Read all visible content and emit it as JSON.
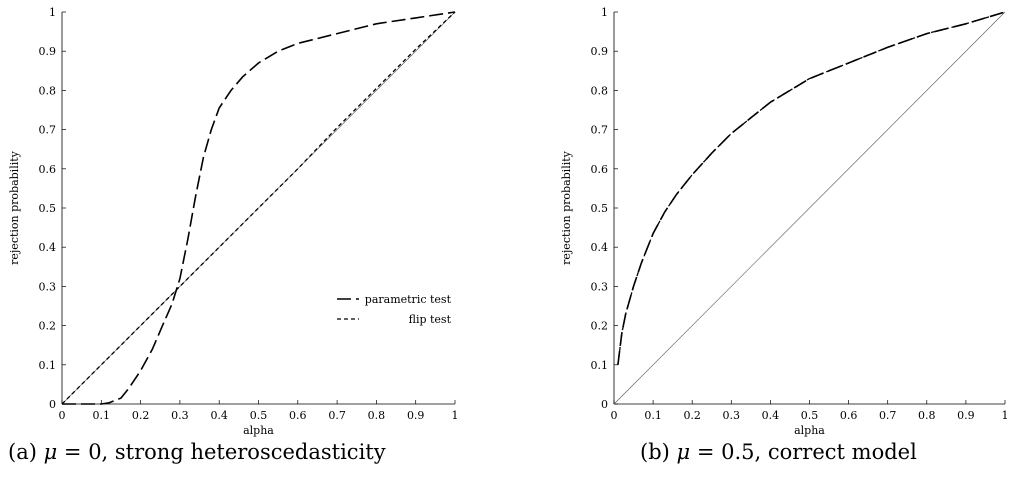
{
  "chart_data": [
    {
      "type": "line",
      "title": "",
      "xlabel": "alpha",
      "ylabel": "rejection probability",
      "xlim": [
        0,
        1
      ],
      "ylim": [
        0,
        1
      ],
      "xticks": [
        "0",
        "0.1",
        "0.2",
        "0.3",
        "0.4",
        "0.5",
        "0.6",
        "0.7",
        "0.8",
        "0.9",
        "1"
      ],
      "yticks": [
        "0",
        "0.1",
        "0.2",
        "0.3",
        "0.4",
        "0.5",
        "0.6",
        "0.7",
        "0.8",
        "0.9",
        "1"
      ],
      "grid": false,
      "legend_position": "lower-right",
      "reference_line": {
        "x": [
          0,
          1
        ],
        "y": [
          0,
          1
        ],
        "style": "thin-solid"
      },
      "series": [
        {
          "name": "parametric test",
          "style": "long-dash",
          "x": [
            0.0,
            0.05,
            0.1,
            0.12,
            0.15,
            0.17,
            0.2,
            0.23,
            0.26,
            0.28,
            0.3,
            0.32,
            0.34,
            0.36,
            0.38,
            0.4,
            0.43,
            0.46,
            0.5,
            0.55,
            0.6,
            0.7,
            0.8,
            0.9,
            1.0
          ],
          "y": [
            0.0,
            0.0,
            0.0,
            0.003,
            0.015,
            0.04,
            0.085,
            0.14,
            0.21,
            0.255,
            0.32,
            0.42,
            0.53,
            0.63,
            0.7,
            0.755,
            0.8,
            0.835,
            0.87,
            0.9,
            0.92,
            0.945,
            0.97,
            0.985,
            1.0
          ]
        },
        {
          "name": "flip test",
          "style": "short-dash",
          "x": [
            0.0,
            0.1,
            0.2,
            0.3,
            0.4,
            0.5,
            0.6,
            0.7,
            0.8,
            0.9,
            1.0
          ],
          "y": [
            0.0,
            0.1,
            0.2,
            0.3,
            0.4,
            0.5,
            0.6,
            0.705,
            0.805,
            0.905,
            1.0
          ]
        }
      ]
    },
    {
      "type": "line",
      "title": "",
      "xlabel": "alpha",
      "ylabel": "rejection probability",
      "xlim": [
        0,
        1
      ],
      "ylim": [
        0,
        1
      ],
      "xticks": [
        "0",
        "0.1",
        "0.2",
        "0.3",
        "0.4",
        "0.5",
        "0.6",
        "0.7",
        "0.8",
        "0.9",
        "1"
      ],
      "yticks": [
        "0",
        "0.1",
        "0.2",
        "0.3",
        "0.4",
        "0.5",
        "0.6",
        "0.7",
        "0.8",
        "0.9",
        "1"
      ],
      "grid": false,
      "legend_position": "none",
      "reference_line": {
        "x": [
          0,
          1
        ],
        "y": [
          0,
          1
        ],
        "style": "thin-solid"
      },
      "series": [
        {
          "style": "long-dash",
          "x": [
            0.01,
            0.02,
            0.03,
            0.05,
            0.07,
            0.1,
            0.13,
            0.16,
            0.2,
            0.25,
            0.3,
            0.35,
            0.4,
            0.45,
            0.5,
            0.6,
            0.7,
            0.8,
            0.9,
            1.0
          ],
          "y": [
            0.1,
            0.18,
            0.23,
            0.3,
            0.36,
            0.435,
            0.49,
            0.535,
            0.585,
            0.64,
            0.69,
            0.73,
            0.77,
            0.8,
            0.83,
            0.87,
            0.91,
            0.945,
            0.97,
            1.0
          ]
        },
        {
          "style": "short-dash",
          "x": [
            0.01,
            0.02,
            0.03,
            0.05,
            0.07,
            0.1,
            0.13,
            0.16,
            0.2,
            0.25,
            0.3,
            0.35,
            0.4,
            0.45,
            0.5,
            0.6,
            0.7,
            0.8,
            0.9,
            1.0
          ],
          "y": [
            0.1,
            0.18,
            0.23,
            0.3,
            0.36,
            0.435,
            0.49,
            0.535,
            0.585,
            0.64,
            0.69,
            0.73,
            0.77,
            0.8,
            0.83,
            0.87,
            0.91,
            0.945,
            0.97,
            1.0
          ]
        }
      ]
    }
  ],
  "captions": {
    "a": {
      "prefix": "(a) ",
      "symbol": "μ",
      "rest": " = 0, strong heteroscedasticity"
    },
    "b": {
      "prefix": "(b) ",
      "symbol": "μ",
      "rest": " = 0.5, correct model"
    }
  }
}
